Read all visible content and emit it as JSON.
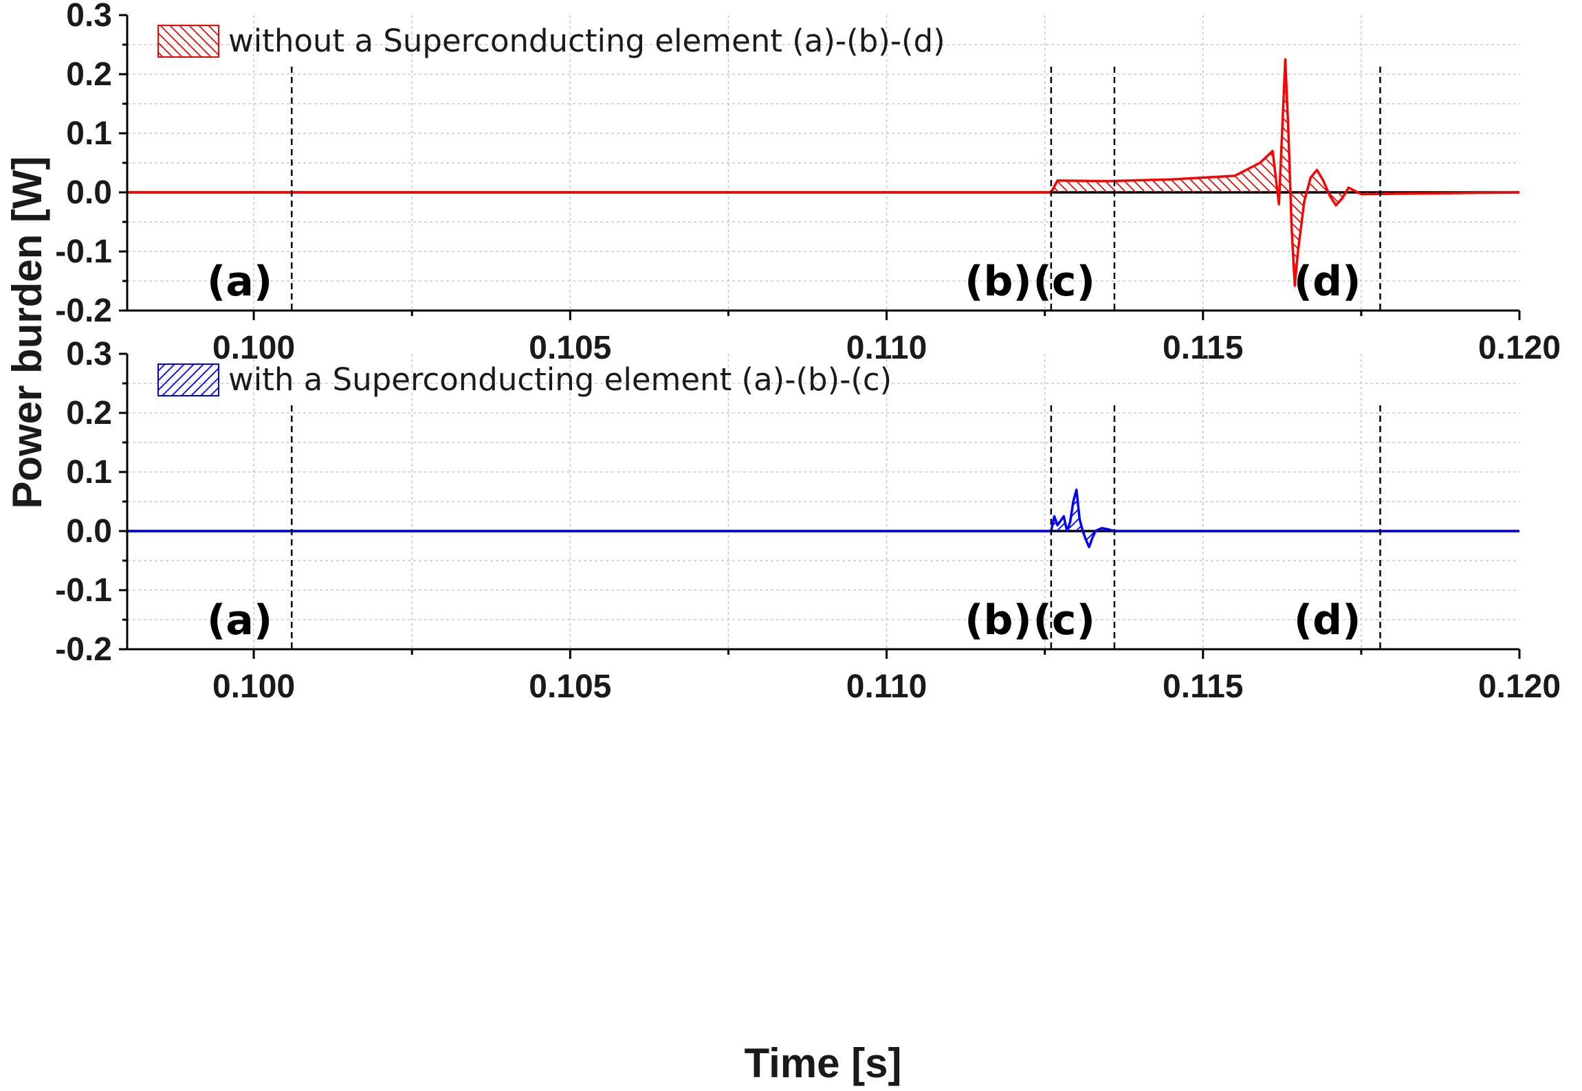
{
  "chart_data": [
    {
      "type": "line",
      "panel": "top",
      "xlabel": "Time [s]",
      "ylabel": "Power burden [W]",
      "xlim": [
        0.098,
        0.12
      ],
      "ylim": [
        -0.2,
        0.3
      ],
      "x_ticks": [
        0.1,
        0.105,
        0.11,
        0.115,
        0.12
      ],
      "x_tick_labels": [
        "0.100",
        "0.105",
        "0.110",
        "0.115",
        "0.120"
      ],
      "y_ticks": [
        -0.2,
        -0.1,
        0.0,
        0.1,
        0.2,
        0.3
      ],
      "y_tick_labels": [
        "-0.2",
        "-0.1",
        "0.0",
        "0.1",
        "0.2",
        "0.3"
      ],
      "grid": true,
      "legend_position": "top-left",
      "series": [
        {
          "name": "without a Superconducting element (a)-(b)-(d)",
          "color": "#ff0000",
          "fill_pattern": "hatch-backslash",
          "x": [
            0.098,
            0.1126,
            0.1127,
            0.1135,
            0.1145,
            0.1155,
            0.1159,
            0.1161,
            0.1162,
            0.1163,
            0.11635,
            0.1164,
            0.11645,
            0.1165,
            0.1166,
            0.1167,
            0.1168,
            0.1169,
            0.117,
            0.1171,
            0.1172,
            0.1173,
            0.1175,
            0.12
          ],
          "y": [
            0.0,
            0.0,
            0.02,
            0.019,
            0.022,
            0.028,
            0.05,
            0.07,
            -0.02,
            0.225,
            0.1,
            -0.06,
            -0.158,
            -0.1,
            -0.015,
            0.025,
            0.038,
            0.02,
            -0.005,
            -0.022,
            -0.01,
            0.008,
            -0.003,
            0.0
          ]
        }
      ],
      "markers": [
        {
          "label": "(a)",
          "x": 0.1006
        },
        {
          "label": "(b)",
          "x": 0.1126
        },
        {
          "label": "(c)",
          "x": 0.1136
        },
        {
          "label": "(d)",
          "x": 0.1178
        }
      ]
    },
    {
      "type": "line",
      "panel": "bottom",
      "xlabel": "Time [s]",
      "ylabel": "Power burden [W]",
      "xlim": [
        0.098,
        0.12
      ],
      "ylim": [
        -0.2,
        0.3
      ],
      "x_ticks": [
        0.1,
        0.105,
        0.11,
        0.115,
        0.12
      ],
      "x_tick_labels": [
        "0.100",
        "0.105",
        "0.110",
        "0.115",
        "0.120"
      ],
      "y_ticks": [
        -0.2,
        -0.1,
        0.0,
        0.1,
        0.2,
        0.3
      ],
      "y_tick_labels": [
        "-0.2",
        "-0.1",
        "0.0",
        "0.1",
        "0.2",
        "0.3"
      ],
      "grid": true,
      "legend_position": "top-left",
      "series": [
        {
          "name": "with a Superconducting element (a)-(b)-(c)",
          "color": "#0000ff",
          "fill_pattern": "hatch-slash",
          "x": [
            0.098,
            0.1126,
            0.11265,
            0.1127,
            0.1128,
            0.11285,
            0.1129,
            0.11295,
            0.113,
            0.11305,
            0.1131,
            0.11315,
            0.1132,
            0.11325,
            0.1133,
            0.1134,
            0.1135,
            0.1136,
            0.12
          ],
          "y": [
            0.0,
            0.0,
            0.025,
            0.01,
            0.025,
            0.0,
            0.015,
            0.05,
            0.07,
            0.02,
            0.0,
            -0.015,
            -0.027,
            -0.012,
            0.0,
            0.005,
            0.003,
            0.0,
            0.0
          ]
        }
      ],
      "markers": [
        {
          "label": "(a)",
          "x": 0.1006
        },
        {
          "label": "(b)",
          "x": 0.1126
        },
        {
          "label": "(c)",
          "x": 0.1136
        },
        {
          "label": "(d)",
          "x": 0.1178
        }
      ]
    }
  ]
}
